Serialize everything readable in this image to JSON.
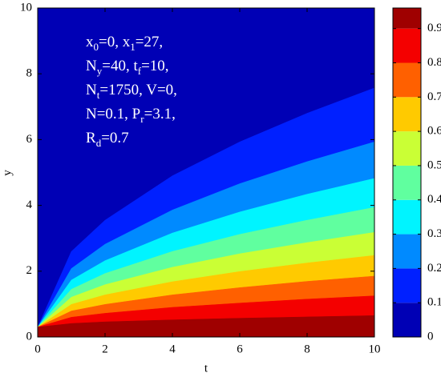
{
  "chart_data": {
    "type": "contour",
    "x_label": "t",
    "y_label": "y",
    "xlim": [
      0,
      10
    ],
    "xticks": [
      0,
      2,
      4,
      6,
      8,
      10
    ],
    "ylim": [
      0,
      10
    ],
    "yticks": [
      0,
      2,
      4,
      6,
      8,
      10
    ],
    "clim": [
      0,
      0.96
    ],
    "cticks": [
      0,
      0.1,
      0.2,
      0.3,
      0.4,
      0.5,
      0.6,
      0.7,
      0.8,
      0.9
    ],
    "colormap": "jet",
    "x": [
      0,
      1,
      2,
      4,
      6,
      8,
      10
    ],
    "contours": [
      {
        "level": 0.1,
        "y": [
          0.3,
          2.6,
          3.55,
          4.9,
          5.93,
          6.8,
          7.57
        ]
      },
      {
        "level": 0.2,
        "y": [
          0.3,
          2.08,
          2.82,
          3.86,
          4.66,
          5.33,
          5.93
        ]
      },
      {
        "level": 0.3,
        "y": [
          0.3,
          1.73,
          2.32,
          3.16,
          3.8,
          4.34,
          4.82
        ]
      },
      {
        "level": 0.4,
        "y": [
          0.3,
          1.45,
          1.93,
          2.6,
          3.12,
          3.55,
          3.94
        ]
      },
      {
        "level": 0.5,
        "y": [
          0.3,
          1.21,
          1.59,
          2.12,
          2.53,
          2.87,
          3.18
        ]
      },
      {
        "level": 0.6,
        "y": [
          0.3,
          0.99,
          1.28,
          1.68,
          1.99,
          2.25,
          2.48
        ]
      },
      {
        "level": 0.7,
        "y": [
          0.3,
          0.79,
          0.99,
          1.28,
          1.5,
          1.69,
          1.85
        ]
      },
      {
        "level": 0.8,
        "y": [
          0.3,
          0.6,
          0.72,
          0.9,
          1.03,
          1.15,
          1.25
        ]
      },
      {
        "level": 0.9,
        "y": [
          0.3,
          0.41,
          0.46,
          0.52,
          0.57,
          0.61,
          0.65
        ]
      }
    ],
    "annotation": [
      [
        "x",
        "0",
        "=0, x",
        "1",
        "=27,"
      ],
      [
        "N",
        "y",
        "=40, t",
        "f",
        "=10,"
      ],
      [
        "N",
        "t",
        "=1750, V=0,"
      ],
      [
        "N=0.1, P",
        "r",
        "=3.1,"
      ],
      [
        "R",
        "d",
        "=0.7"
      ]
    ]
  }
}
